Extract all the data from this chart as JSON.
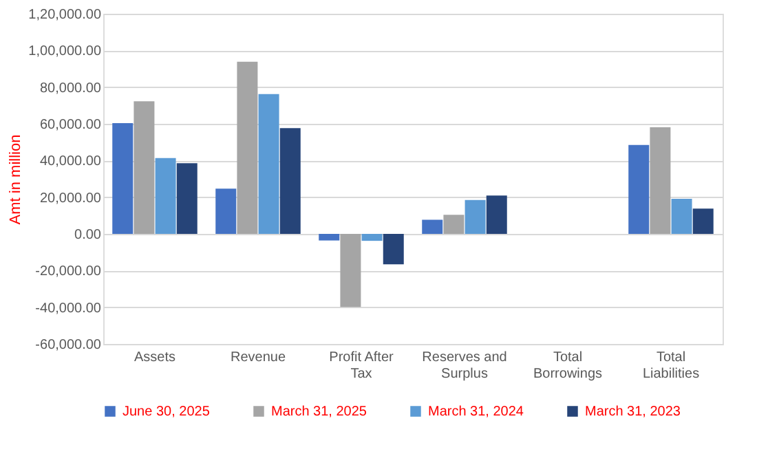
{
  "chart_data": {
    "type": "bar",
    "ylabel": "Amt in million",
    "categories": [
      "Assets",
      "Revenue",
      "Profit After Tax",
      "Reserves and Surplus",
      "Total Borrowings",
      "Total Liabilities"
    ],
    "series": [
      {
        "name": "June 30, 2025",
        "color": "#4472c4",
        "values": [
          60400,
          24700,
          -3600,
          7700,
          0,
          48500
        ]
      },
      {
        "name": "March 31, 2025",
        "color": "#a5a5a5",
        "values": [
          72300,
          93800,
          -39800,
          10400,
          0,
          58100
        ]
      },
      {
        "name": "March 31, 2024",
        "color": "#5b9bd5",
        "values": [
          41300,
          76200,
          -3800,
          18500,
          0,
          19100
        ]
      },
      {
        "name": "March 31, 2023",
        "color": "#264478",
        "values": [
          38500,
          57700,
          -16600,
          20900,
          0,
          13800
        ]
      }
    ],
    "ylim": [
      -60000,
      120000
    ],
    "yticks": [
      {
        "value": -60000,
        "label": "-60,000.00"
      },
      {
        "value": -40000,
        "label": "-40,000.00"
      },
      {
        "value": -20000,
        "label": "-20,000.00"
      },
      {
        "value": 0,
        "label": "0.00"
      },
      {
        "value": 20000,
        "label": "20,000.00"
      },
      {
        "value": 40000,
        "label": "40,000.00"
      },
      {
        "value": 60000,
        "label": "60,000.00"
      },
      {
        "value": 80000,
        "label": "80,000.00"
      },
      {
        "value": 100000,
        "label": "1,00,000.00"
      },
      {
        "value": 120000,
        "label": "1,20,000.00"
      }
    ],
    "grid": "y",
    "legend": "bottom"
  }
}
